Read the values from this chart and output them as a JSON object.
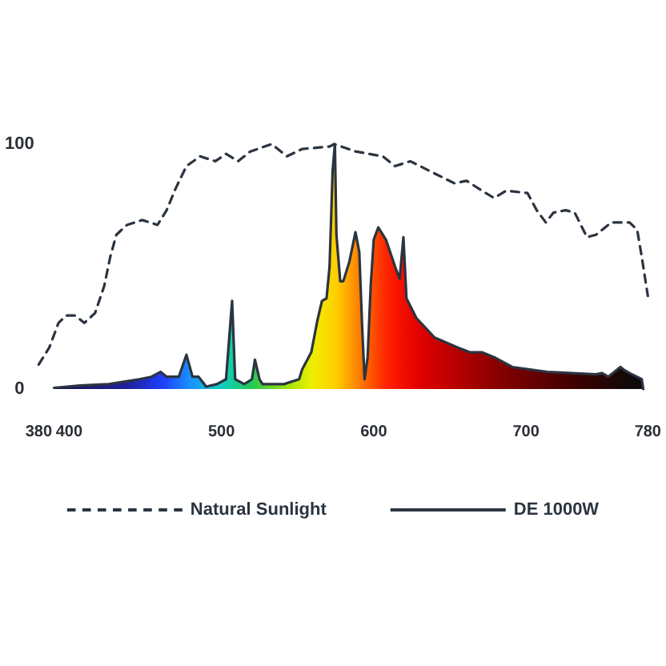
{
  "chart_data": {
    "type": "line",
    "series": [
      {
        "name": "Natural Sunlight",
        "line_style": "dashed",
        "color": "#2b3440",
        "x": [
          380,
          387,
          393,
          398,
          404,
          410,
          417,
          423,
          427,
          431,
          438,
          448,
          458,
          464,
          470,
          477,
          486,
          496,
          503,
          511,
          519,
          533,
          543,
          553,
          571,
          574,
          588,
          606,
          614,
          624,
          640,
          653,
          661,
          671,
          679,
          687,
          701,
          707,
          713,
          718,
          726,
          732,
          740,
          746,
          756,
          768,
          773,
          776,
          780
        ],
        "values": [
          10,
          17,
          27,
          30,
          30,
          27,
          31,
          42,
          54,
          63,
          67,
          69,
          67,
          73,
          82,
          91,
          95,
          93,
          96,
          93,
          97,
          100,
          95,
          98,
          99,
          100,
          97,
          95,
          91,
          93,
          88,
          84,
          85,
          81,
          78,
          81,
          80,
          73,
          68,
          72,
          73,
          72,
          62,
          63,
          68,
          68,
          65,
          54,
          38
        ]
      },
      {
        "name": "DE 1000W",
        "type": "area",
        "color": "#2b3440",
        "x": [
          390,
          407,
          426,
          446,
          454,
          460,
          464,
          472,
          477,
          481,
          485,
          490,
          497,
          503,
          507,
          509,
          515,
          520,
          522,
          525,
          527,
          541,
          551,
          553,
          559,
          563,
          566,
          569,
          571,
          573,
          574.5,
          575.5,
          578,
          580,
          584,
          588,
          590.5,
          592.5,
          594,
          596,
          598,
          600,
          603,
          608,
          614,
          617,
          619.5,
          621.5,
          628,
          640,
          655,
          663,
          671,
          679,
          691,
          714,
          746,
          750,
          754,
          762,
          764,
          768,
          776,
          777
        ],
        "values": [
          0.5,
          1.4,
          2,
          4,
          5,
          7,
          5,
          5,
          14,
          5,
          5,
          1,
          2,
          4,
          36,
          4,
          2,
          4,
          12,
          4,
          2,
          2,
          4,
          8,
          15,
          28,
          36,
          37,
          50,
          89,
          100,
          63,
          44,
          44,
          52,
          64,
          56,
          24,
          4,
          13,
          42,
          61,
          66,
          61,
          50,
          45,
          62,
          37,
          29,
          21,
          17,
          15,
          15,
          13,
          9,
          7,
          6,
          6.5,
          5,
          9,
          8,
          6.5,
          4,
          0
        ]
      }
    ],
    "xlim": [
      380,
      780
    ],
    "xticks": [
      380,
      400,
      500,
      600,
      700,
      780
    ],
    "ylim": [
      0,
      100
    ],
    "yticks": [
      0,
      100
    ],
    "legend": "bottom"
  }
}
